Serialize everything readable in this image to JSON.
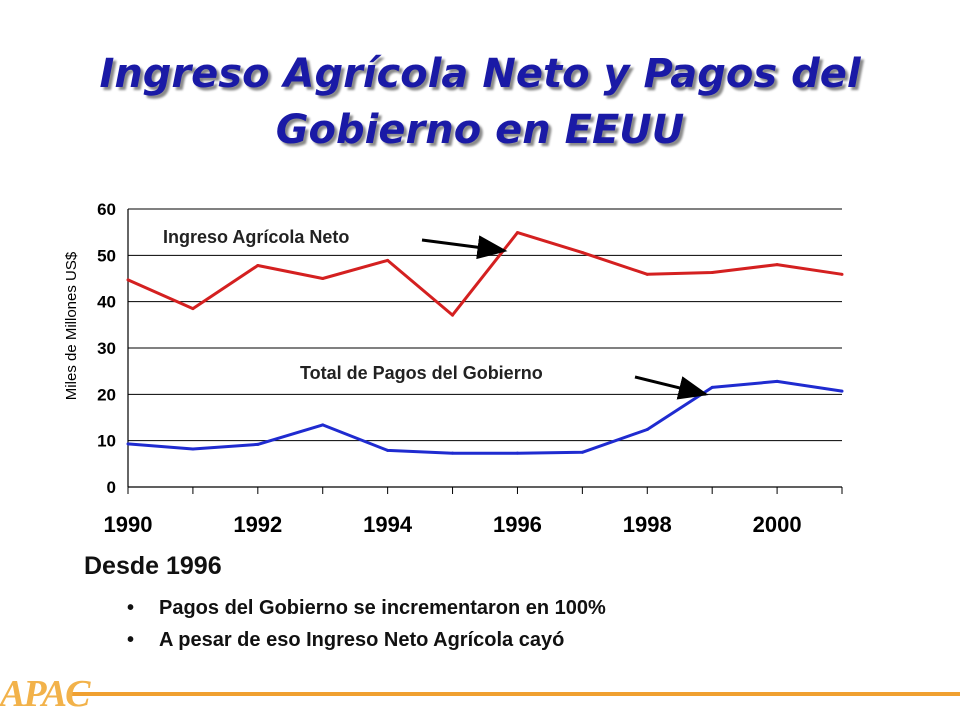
{
  "title": {
    "line1": "Ingreso Agrícola Neto y Pagos del",
    "line2": "Gobierno en EEUU"
  },
  "colors": {
    "title": "#1a1aa6",
    "series_income": "#d42020",
    "series_payments": "#1f2bd0",
    "footer": "#f0a030"
  },
  "chart_data": {
    "type": "line",
    "ylabel": "Miles de Millones US$",
    "xlabel": "",
    "ylim": [
      0,
      60
    ],
    "yticks": [
      "0",
      "10",
      "20",
      "30",
      "40",
      "50",
      "60"
    ],
    "xlim": [
      1990,
      2001
    ],
    "xtick_labels": [
      "1990",
      "1992",
      "1994",
      "1996",
      "1998",
      "2000"
    ],
    "grid": "horizontal",
    "x": [
      1990,
      1991,
      1992,
      1993,
      1994,
      1995,
      1996,
      1997,
      1998,
      1999,
      2000,
      2001
    ],
    "series": [
      {
        "name": "Ingreso Agrícola Neto",
        "color": "#d42020",
        "values": [
          44.7,
          38.5,
          47.8,
          45.0,
          48.9,
          37.1,
          54.9,
          50.6,
          45.9,
          46.3,
          48.0,
          45.9
        ]
      },
      {
        "name": "Total de Pagos del Gobierno",
        "color": "#1f2bd0",
        "values": [
          9.3,
          8.2,
          9.2,
          13.4,
          7.9,
          7.3,
          7.3,
          7.5,
          12.4,
          21.5,
          22.8,
          20.7
        ]
      }
    ],
    "annotations": [
      {
        "text": "Ingreso Agrícola Neto",
        "series": 0,
        "points_to": [
          1995.8,
          51.0
        ]
      },
      {
        "text": "Total de Pagos del Gobierno",
        "series": 1,
        "points_to": [
          1998.9,
          20.0
        ]
      }
    ]
  },
  "summary": {
    "heading": "Desde 1996",
    "bullets": [
      "Pagos del Gobierno se incrementaron en 100%",
      "A pesar de eso Ingreso Neto Agrícola cayó"
    ]
  },
  "footer": {
    "logo": "APAC"
  }
}
